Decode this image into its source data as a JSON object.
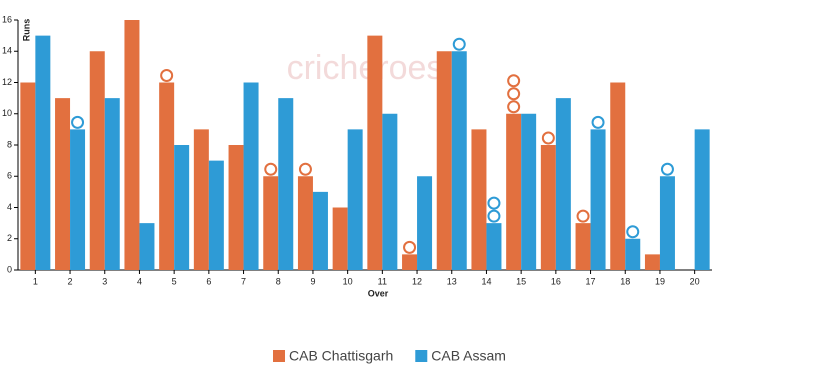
{
  "chart_data": {
    "type": "bar",
    "watermark": "cricheroes",
    "x_label": "Over",
    "y_label": "Runs",
    "categories": [
      "1",
      "2",
      "3",
      "4",
      "5",
      "6",
      "7",
      "8",
      "9",
      "10",
      "11",
      "12",
      "13",
      "14",
      "15",
      "16",
      "17",
      "18",
      "19",
      "20"
    ],
    "series": [
      {
        "name": "CAB Chattisgarh",
        "color": "#e2703f",
        "values": [
          12,
          11,
          14,
          16,
          12,
          9,
          8,
          6,
          6,
          4,
          15,
          1,
          14,
          9,
          10,
          8,
          3,
          12,
          1,
          null
        ],
        "wickets": [
          0,
          0,
          0,
          0,
          1,
          0,
          0,
          1,
          1,
          0,
          0,
          1,
          0,
          0,
          3,
          1,
          1,
          0,
          0,
          0
        ]
      },
      {
        "name": "CAB Assam",
        "color": "#2e9bd6",
        "values": [
          15,
          9,
          11,
          3,
          8,
          7,
          12,
          11,
          5,
          9,
          10,
          6,
          14,
          3,
          10,
          11,
          9,
          2,
          6,
          9
        ],
        "wickets": [
          0,
          1,
          0,
          0,
          0,
          0,
          0,
          0,
          0,
          0,
          0,
          0,
          1,
          2,
          0,
          0,
          1,
          1,
          1,
          0
        ]
      }
    ],
    "ylim": [
      0,
      16
    ],
    "yticks": [
      0,
      2,
      4,
      6,
      8,
      10,
      12,
      14,
      16
    ]
  }
}
